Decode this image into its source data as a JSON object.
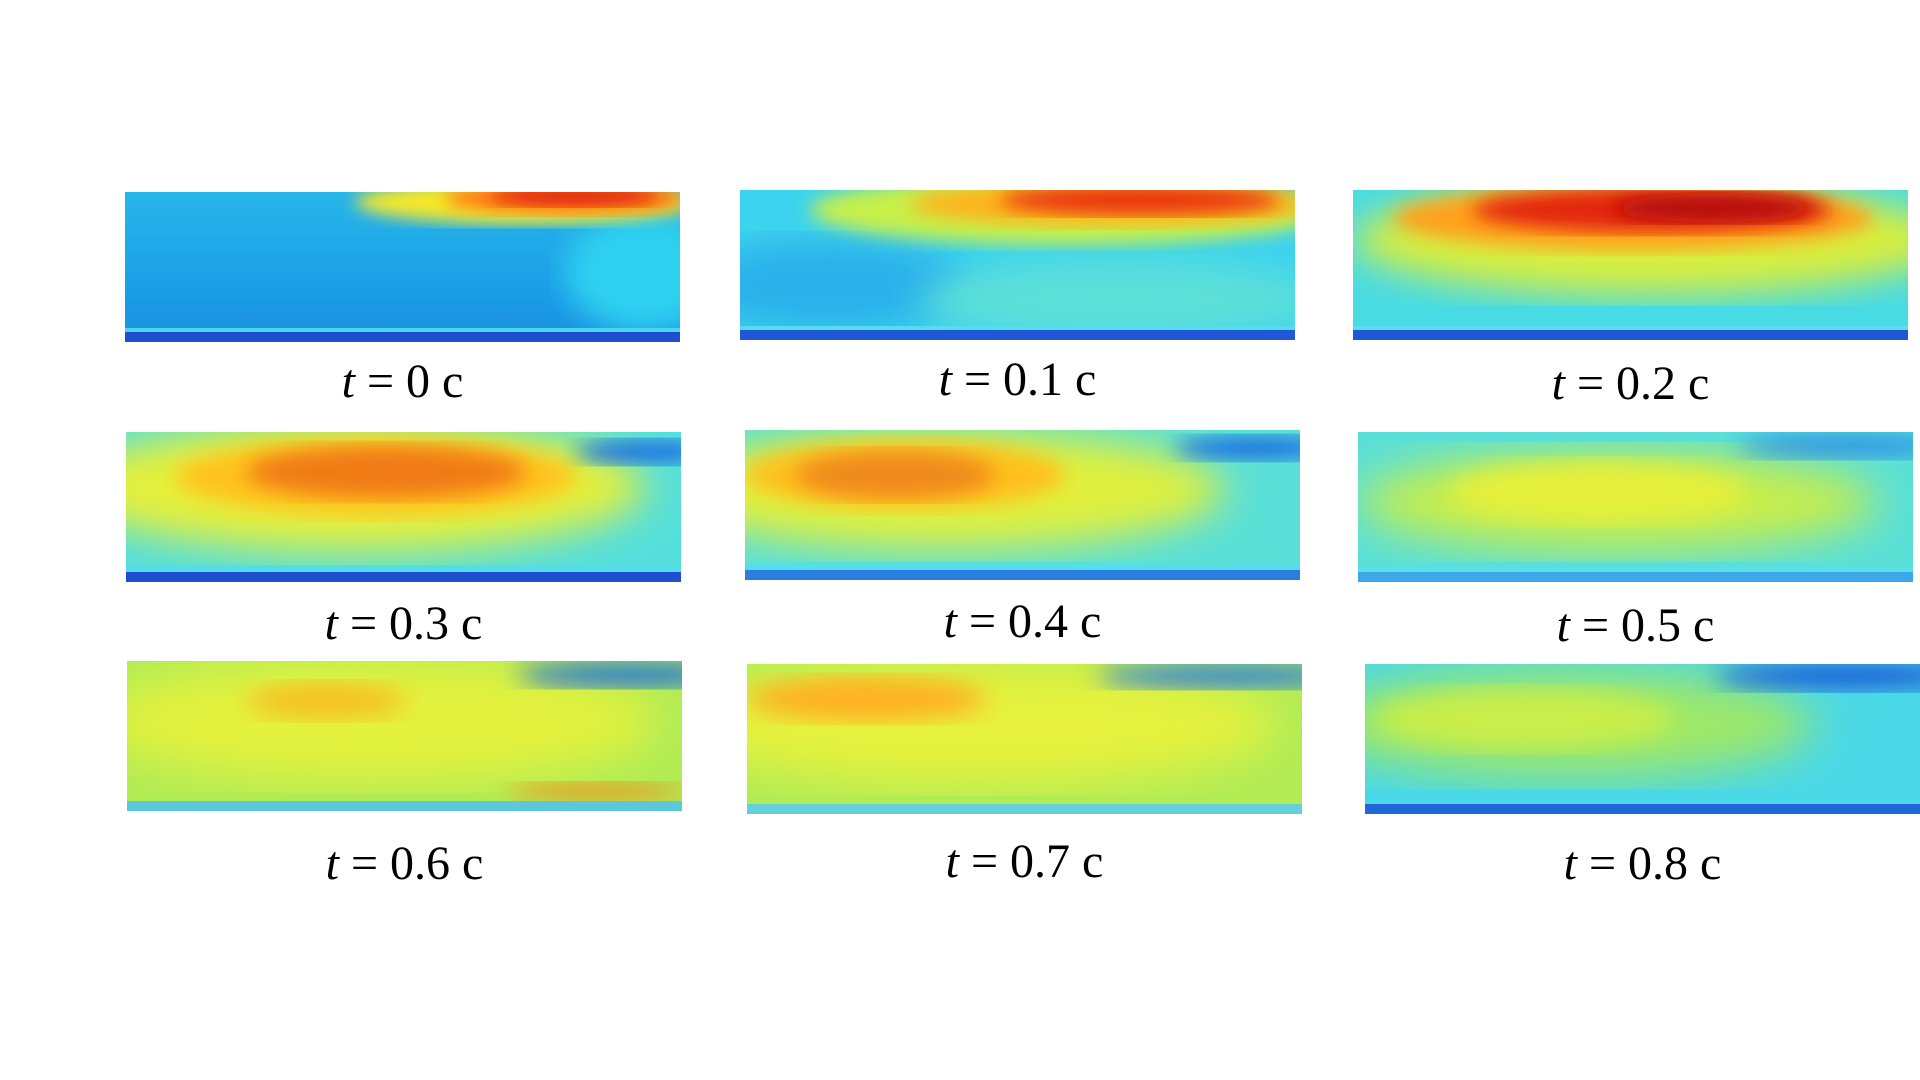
{
  "frames": [
    {
      "label": "0 c"
    },
    {
      "label": "0.1 c"
    },
    {
      "label": "0.2 c"
    },
    {
      "label": "0.3 c"
    },
    {
      "label": "0.4 c"
    },
    {
      "label": "0.5 c"
    },
    {
      "label": "0.6 c"
    },
    {
      "label": "0.7 c"
    },
    {
      "label": "0.8 c"
    }
  ],
  "caption_symbol": "t",
  "caption_equals": " = "
}
